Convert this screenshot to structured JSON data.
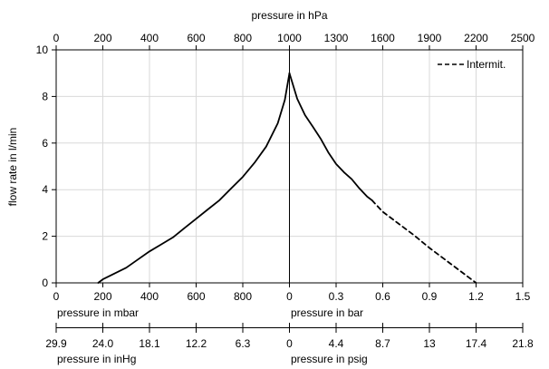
{
  "chart_data": {
    "type": "line",
    "top_axis": {
      "label": "pressure in hPa",
      "ticks": [
        "0",
        "200",
        "400",
        "600",
        "800",
        "1000",
        "1300",
        "1600",
        "1900",
        "2200",
        "2500"
      ]
    },
    "y_axis": {
      "label": "flow rate in l/min",
      "ticks": [
        "0",
        "2",
        "4",
        "6",
        "8",
        "10"
      ],
      "range": [
        0,
        10
      ]
    },
    "bottom_axis_left": {
      "label": "pressure in mbar",
      "ticks": [
        "0",
        "200",
        "400",
        "600",
        "800",
        "0"
      ],
      "range": [
        0,
        1000
      ]
    },
    "bottom_axis_right": {
      "label": "pressure in bar",
      "ticks": [
        "0.3",
        "0.6",
        "0.9",
        "1.2",
        "1.5"
      ],
      "range": [
        0,
        1.5
      ]
    },
    "second_axis_left": {
      "label": "pressure in inHg",
      "ticks": [
        "29.9",
        "24.0",
        "18.1",
        "12.2",
        "6.3",
        "0"
      ]
    },
    "second_axis_right": {
      "label": "pressure in psig",
      "ticks": [
        "4.4",
        "8.7",
        "13",
        "17.4",
        "21.8"
      ]
    },
    "grid": true,
    "legend_position": "top-right",
    "series": [
      {
        "style": "solid",
        "segment": "vacuum",
        "x_unit": "mbar",
        "points": [
          [
            180,
            0.0
          ],
          [
            200,
            0.15
          ],
          [
            250,
            0.4
          ],
          [
            300,
            0.65
          ],
          [
            350,
            1.0
          ],
          [
            400,
            1.35
          ],
          [
            450,
            1.65
          ],
          [
            500,
            1.95
          ],
          [
            550,
            2.35
          ],
          [
            600,
            2.75
          ],
          [
            650,
            3.15
          ],
          [
            700,
            3.55
          ],
          [
            750,
            4.05
          ],
          [
            800,
            4.55
          ],
          [
            850,
            5.15
          ],
          [
            900,
            5.85
          ],
          [
            950,
            6.85
          ],
          [
            980,
            7.85
          ],
          [
            1000,
            9.0
          ]
        ]
      },
      {
        "style": "solid",
        "segment": "pressure",
        "x_unit": "bar",
        "points": [
          [
            0.0,
            9.0
          ],
          [
            0.05,
            7.9
          ],
          [
            0.1,
            7.2
          ],
          [
            0.15,
            6.7
          ],
          [
            0.2,
            6.2
          ],
          [
            0.25,
            5.6
          ],
          [
            0.3,
            5.1
          ],
          [
            0.35,
            4.75
          ],
          [
            0.4,
            4.45
          ],
          [
            0.45,
            4.05
          ],
          [
            0.5,
            3.7
          ],
          [
            0.53,
            3.55
          ]
        ]
      },
      {
        "name": "Intermit.",
        "style": "dashed",
        "segment": "pressure",
        "x_unit": "bar",
        "points": [
          [
            0.53,
            3.55
          ],
          [
            0.6,
            3.05
          ],
          [
            0.7,
            2.55
          ],
          [
            0.8,
            2.05
          ],
          [
            0.9,
            1.5
          ],
          [
            1.0,
            1.0
          ],
          [
            1.1,
            0.5
          ],
          [
            1.2,
            0.0
          ]
        ]
      }
    ]
  }
}
